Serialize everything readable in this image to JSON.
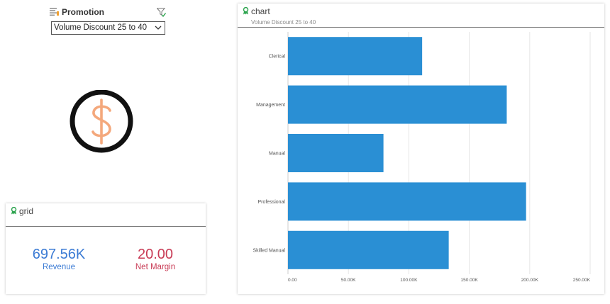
{
  "slicer": {
    "title": "Promotion",
    "selected_value": "Volume Discount 25 to 40",
    "icons": {
      "list": "list-icon",
      "filter": "filter-check-icon",
      "dropdown": "chevron-down-icon"
    }
  },
  "decor": {
    "icon": "dollar-icon",
    "icon_color": "#f4a87c"
  },
  "grid": {
    "title": "grid",
    "revenue": {
      "value": "697.56K",
      "label": "Revenue",
      "color": "#3b7bd4"
    },
    "net_margin": {
      "value": "20.00",
      "label": "Net Margin",
      "color": "#c83b55"
    }
  },
  "chart": {
    "title": "chart",
    "subtitle": "Volume Discount 25 to 40"
  },
  "colors": {
    "bar": "#2a8fd4",
    "badge": "#2ea44f"
  },
  "chart_data": {
    "type": "bar",
    "orientation": "horizontal",
    "categories": [
      "Clerical",
      "Management",
      "Manual",
      "Professional",
      "Skilled Manual"
    ],
    "values": [
      111000,
      181000,
      79000,
      197000,
      133000
    ],
    "xlim": [
      0,
      250000
    ],
    "x_ticks": [
      0,
      50000,
      100000,
      150000,
      200000,
      250000
    ],
    "x_tick_labels": [
      "0.00",
      "50.00K",
      "100.00K",
      "150.00K",
      "200.00K",
      "250.00K"
    ],
    "grid": true,
    "title": "chart",
    "subtitle": "Volume Discount 25 to 40"
  }
}
